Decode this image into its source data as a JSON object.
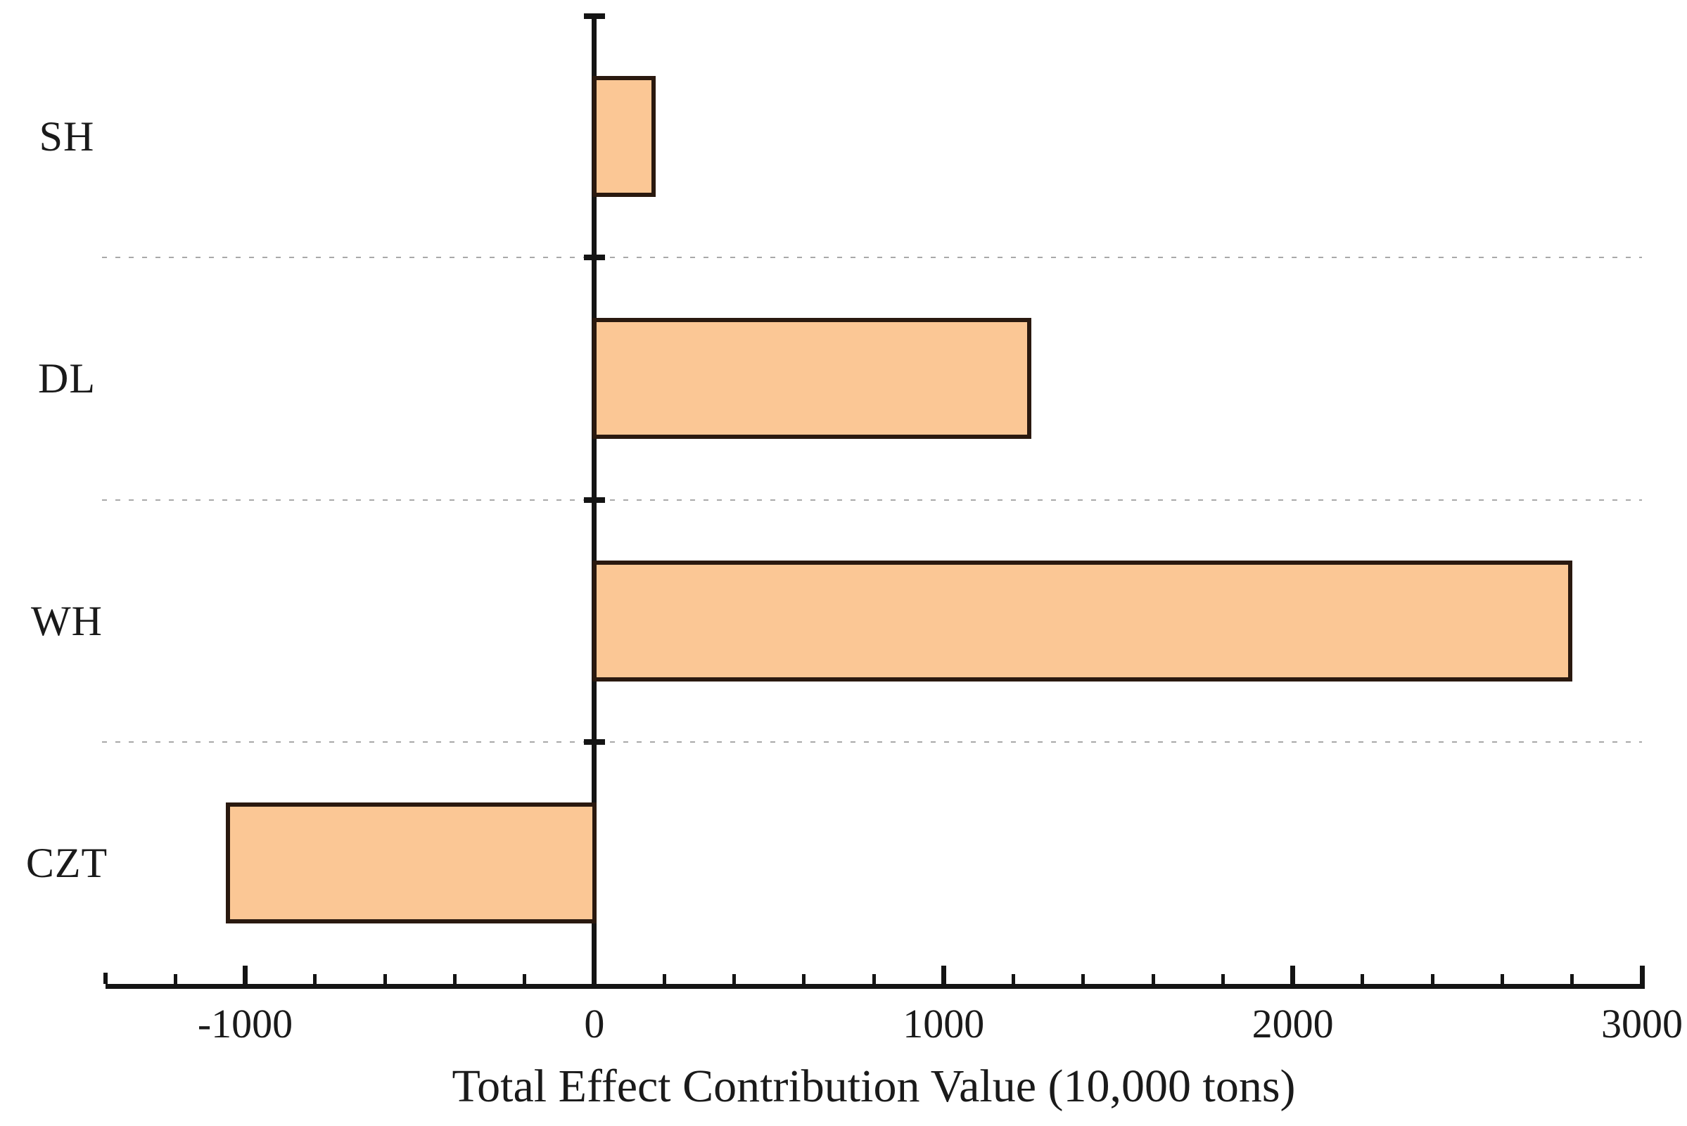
{
  "chart_data": {
    "type": "bar",
    "orientation": "horizontal",
    "categories": [
      "SH",
      "DL",
      "WH",
      "CZT"
    ],
    "values": [
      170,
      1245,
      2795,
      -1050
    ],
    "title": "",
    "xlabel": "Total Effect Contribution Value (10,000 tons)",
    "ylabel": "",
    "xlim": [
      -1400,
      3000
    ],
    "x_major_ticks": [
      -1000,
      0,
      1000,
      2000,
      3000
    ],
    "x_major_tick_labels": [
      "-1000",
      "0",
      "1000",
      "2000",
      "3000"
    ],
    "x_minor_tick_step": 200,
    "grid": "dotted horizontal separators between category bands",
    "legend_position": "none",
    "colors": {
      "bar_fill": "#FBC795",
      "bar_border": "#2A190F",
      "axis": "#141414",
      "grid_line": "#A9A9A9",
      "text": "#1A1A1A",
      "background": "#FFFFFF"
    }
  }
}
